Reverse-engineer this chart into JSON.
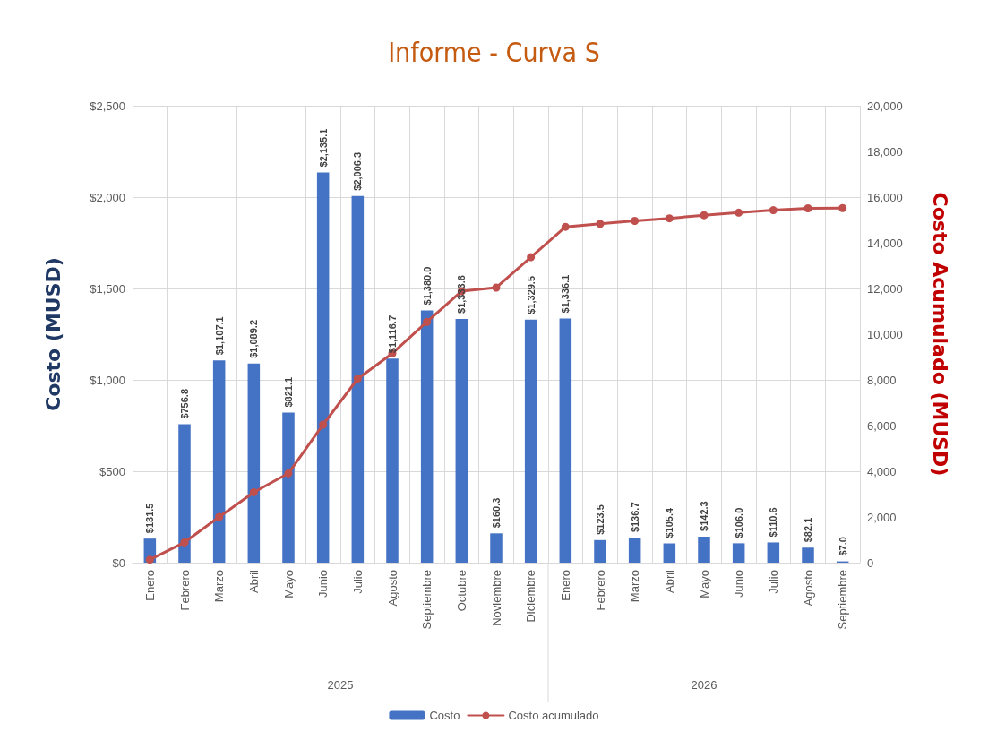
{
  "chart_data": {
    "type": "bar",
    "title": "Informe - Curva S",
    "ylabel": "Costo (MUSD)",
    "y2label": "Costo Acumulado (MUSD)",
    "categories": [
      "Enero",
      "Febrero",
      "Marzo",
      "Abril",
      "Mayo",
      "Junio",
      "Julio",
      "Agosto",
      "Septiembre",
      "Octubre",
      "Noviembre",
      "Diciembre",
      "Enero",
      "Febrero",
      "Marzo",
      "Abril",
      "Mayo",
      "Junio",
      "Julio",
      "Agosto",
      "Septiembre"
    ],
    "series": [
      {
        "name": "Costo",
        "color": "#4472c4",
        "values": [
          131.5,
          756.8,
          1107.1,
          1089.2,
          821.1,
          2135.1,
          2006.3,
          1116.7,
          1380.0,
          1333.6,
          160.3,
          1329.5,
          1336.1,
          123.5,
          136.7,
          105.4,
          142.3,
          106.0,
          110.6,
          82.1,
          7.0
        ],
        "value_labels": [
          "$131.5",
          "$756.8",
          "$1,107.1",
          "$1,089.2",
          "$821.1",
          "$2,135.1",
          "$2,006.3",
          "$1,116.7",
          "$1,380.0",
          "$1,333.6",
          "$160.3",
          "$1,329.5",
          "$1,336.1",
          "$123.5",
          "$136.7",
          "$105.4",
          "$142.3",
          "$106.0",
          "$110.6",
          "$82.1",
          "$7.0"
        ]
      },
      {
        "name": "Costo acumulado",
        "type": "line",
        "axis": "y2",
        "color": "#c0504d",
        "values": [
          130,
          890,
          2000,
          3080,
          3910,
          6040,
          8050,
          9160,
          10540,
          11880,
          12040,
          13370,
          14700,
          14830,
          14960,
          15070,
          15210,
          15320,
          15430,
          15510,
          15520
        ]
      }
    ],
    "ylim": [
      0,
      2500
    ],
    "yticks": [
      {
        "value": 0,
        "label": "$0"
      },
      {
        "value": 500,
        "label": "$500"
      },
      {
        "value": 1000,
        "label": "$1,000"
      },
      {
        "value": 1500,
        "label": "$1,500"
      },
      {
        "value": 2000,
        "label": "$2,000"
      },
      {
        "value": 2500,
        "label": "$2,500"
      }
    ],
    "y2lim": [
      0,
      20000
    ],
    "y2ticks": [
      {
        "value": 0,
        "label": "0"
      },
      {
        "value": 2000,
        "label": "2,000"
      },
      {
        "value": 4000,
        "label": "4,000"
      },
      {
        "value": 6000,
        "label": "6,000"
      },
      {
        "value": 8000,
        "label": "8,000"
      },
      {
        "value": 10000,
        "label": "10,000"
      },
      {
        "value": 12000,
        "label": "12,000"
      },
      {
        "value": 14000,
        "label": "14,000"
      },
      {
        "value": 16000,
        "label": "16,000"
      },
      {
        "value": 18000,
        "label": "18,000"
      },
      {
        "value": 20000,
        "label": "20,000"
      }
    ],
    "annotations": [
      "2025",
      "2026"
    ],
    "grid": true,
    "legend": "bottom",
    "marker": "circle",
    "line_style": "solid"
  }
}
